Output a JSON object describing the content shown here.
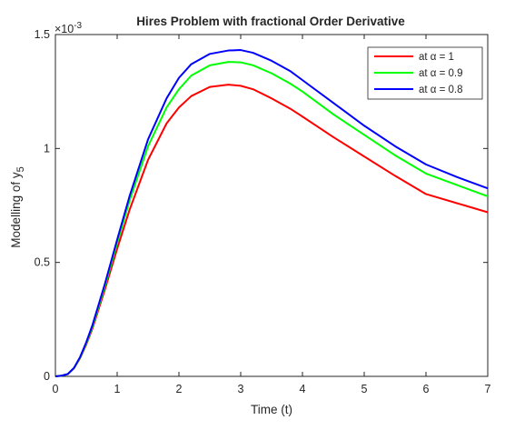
{
  "chart_data": {
    "type": "line",
    "title": "Hires Problem with fractional Order Derivative",
    "xlabel": "Time (t)",
    "ylabel": "Modelling of y",
    "ylabel_sub": "5",
    "y_exponent": "×10",
    "y_exponent_power": "-3",
    "xlim": [
      0,
      7
    ],
    "ylim": [
      0,
      1.5
    ],
    "x_ticks": [
      "0",
      "1",
      "2",
      "3",
      "4",
      "5",
      "6",
      "7"
    ],
    "y_ticks": [
      "0",
      "0.5",
      "1",
      "1.5"
    ],
    "grid": false,
    "legend_position": "top-right",
    "x": [
      0,
      0.1,
      0.2,
      0.3,
      0.4,
      0.5,
      0.6,
      0.8,
      1.0,
      1.2,
      1.5,
      1.8,
      2.0,
      2.2,
      2.5,
      2.8,
      3.0,
      3.2,
      3.5,
      3.8,
      4.0,
      4.5,
      5.0,
      5.5,
      6.0,
      6.5,
      7.0
    ],
    "series": [
      {
        "name": "at α = 1",
        "color": "#ff0000",
        "values": [
          0,
          0.003,
          0.01,
          0.035,
          0.08,
          0.14,
          0.21,
          0.38,
          0.56,
          0.73,
          0.95,
          1.11,
          1.18,
          1.23,
          1.27,
          1.28,
          1.275,
          1.26,
          1.22,
          1.175,
          1.14,
          1.05,
          0.965,
          0.88,
          0.8,
          0.76,
          0.72
        ]
      },
      {
        "name": "at α = 0.9",
        "color": "#00ff00",
        "values": [
          0,
          0.003,
          0.01,
          0.036,
          0.082,
          0.145,
          0.218,
          0.395,
          0.585,
          0.77,
          1.01,
          1.18,
          1.26,
          1.32,
          1.365,
          1.38,
          1.378,
          1.365,
          1.33,
          1.285,
          1.25,
          1.15,
          1.06,
          0.97,
          0.89,
          0.84,
          0.79
        ]
      },
      {
        "name": "at α = 0.8",
        "color": "#0000ff",
        "values": [
          0,
          0.003,
          0.01,
          0.037,
          0.085,
          0.15,
          0.225,
          0.405,
          0.6,
          0.79,
          1.04,
          1.22,
          1.31,
          1.37,
          1.415,
          1.43,
          1.432,
          1.42,
          1.385,
          1.34,
          1.3,
          1.2,
          1.1,
          1.01,
          0.93,
          0.875,
          0.825
        ]
      }
    ]
  }
}
